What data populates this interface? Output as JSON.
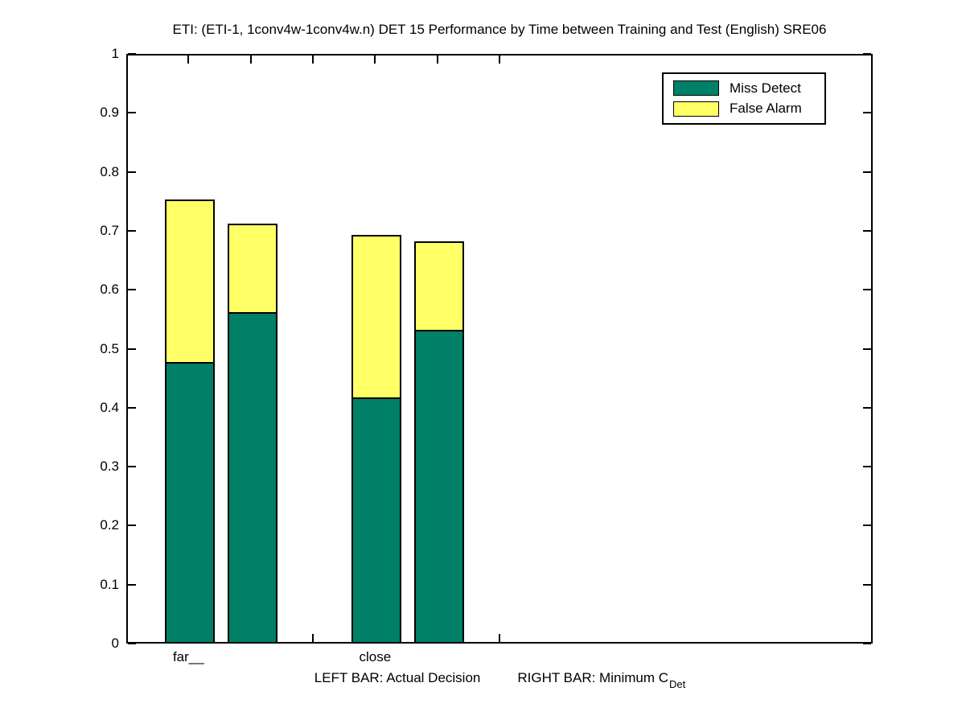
{
  "title": "ETI: (ETI-1, 1conv4w-1conv4w.n) DET 15 Performance by Time between Training and Test (English) SRE06",
  "legend": {
    "items": [
      {
        "label": "Miss Detect",
        "color": "#008066"
      },
      {
        "label": "False Alarm",
        "color": "#ffff66"
      }
    ]
  },
  "footnote": {
    "left_bar": "LEFT BAR: Actual Decision",
    "right_bar": "RIGHT BAR: Minimum C",
    "subscript": "Det"
  },
  "chart_data": {
    "type": "bar",
    "stacked": true,
    "title": "ETI: (ETI-1, 1conv4w-1conv4w.n) DET 15 Performance by Time between Training and Test (English) SRE06",
    "categories": [
      "far__",
      "close"
    ],
    "series": [
      {
        "name": "Miss Detect",
        "color": "#008066",
        "values": [
          0.475,
          0.56,
          0.415,
          0.53
        ]
      },
      {
        "name": "False Alarm",
        "color": "#ffff66",
        "values": [
          0.275,
          0.15,
          0.275,
          0.15
        ]
      }
    ],
    "bars": [
      {
        "group": "far__",
        "role": "Actual Decision",
        "x": 1,
        "miss_detect": 0.475,
        "false_alarm": 0.275,
        "total": 0.75
      },
      {
        "group": "far__",
        "role": "Minimum C_Det",
        "x": 2,
        "miss_detect": 0.56,
        "false_alarm": 0.15,
        "total": 0.71
      },
      {
        "group": "close",
        "role": "Actual Decision",
        "x": 4,
        "miss_detect": 0.415,
        "false_alarm": 0.275,
        "total": 0.69
      },
      {
        "group": "close",
        "role": "Minimum C_Det",
        "x": 5,
        "miss_detect": 0.53,
        "false_alarm": 0.15,
        "total": 0.68
      }
    ],
    "x_axis": {
      "range": [
        0,
        12
      ],
      "ticks": [
        1,
        2,
        3,
        4,
        5,
        6
      ],
      "tick_labels": {
        "1": "far__",
        "4": "close"
      }
    },
    "y_axis": {
      "range": [
        0,
        1
      ],
      "ticks": [
        0,
        0.1,
        0.2,
        0.3,
        0.4,
        0.5,
        0.6,
        0.7,
        0.8,
        0.9,
        1
      ],
      "tick_labels": [
        "0",
        "0.1",
        "0.2",
        "0.3",
        "0.4",
        "0.5",
        "0.6",
        "0.7",
        "0.8",
        "0.9",
        "1"
      ]
    },
    "colors": {
      "miss_detect": "#008066",
      "false_alarm": "#ffff66"
    },
    "legend_position": "top-right",
    "grid": false
  }
}
